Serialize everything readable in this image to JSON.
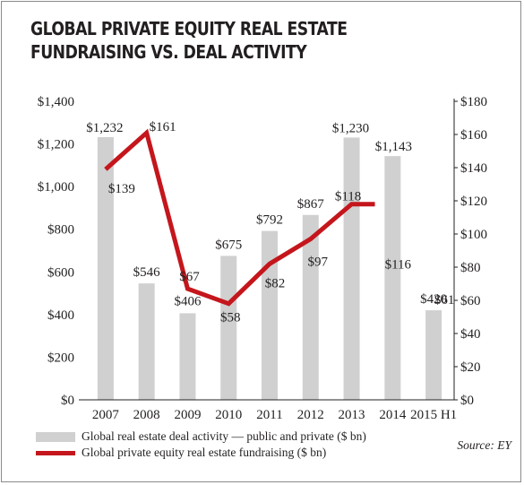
{
  "header": {
    "title_line1": "GLOBAL PRIVATE EQUITY REAL ESTATE",
    "title_line2": "FUNDRAISING VS. DEAL ACTIVITY"
  },
  "legend": {
    "bars_label": "Global real estate deal activity — public and private ($ bn)",
    "line_label": "Global private equity real estate fundraising ($ bn)"
  },
  "source": "Source: EY",
  "colors": {
    "bar": "#d0d0d0",
    "line": "#c4161c",
    "text": "#231f20"
  },
  "chart_data": {
    "type": "bar",
    "title": "GLOBAL PRIVATE EQUITY REAL ESTATE FUNDRAISING VS. DEAL ACTIVITY",
    "categories": [
      "2007",
      "2008",
      "2009",
      "2010",
      "2011",
      "2012",
      "2013",
      "2014",
      "2015 H1"
    ],
    "series": [
      {
        "name": "Global real estate deal activity — public and private ($ bn)",
        "type": "bar",
        "axis": "left",
        "values": [
          1232,
          546,
          406,
          675,
          792,
          867,
          1230,
          1143,
          420
        ],
        "labels": [
          "$1,232",
          "$546",
          "$406",
          "$675",
          "$792",
          "$867",
          "$1,230",
          "$1,143",
          "$420"
        ]
      },
      {
        "name": "Global private equity real estate fundraising ($ bn)",
        "type": "line",
        "axis": "right",
        "values": [
          139,
          161,
          67,
          58,
          82,
          97,
          118,
          116,
          61
        ],
        "labels": [
          "$139",
          "$161",
          "$67",
          "$58",
          "$82",
          "$97",
          "$118",
          "$116",
          "$61"
        ],
        "plotted": [
          true,
          true,
          true,
          true,
          true,
          true,
          true,
          false,
          false
        ]
      }
    ],
    "y_left": {
      "ylim": [
        0,
        1400
      ],
      "ticks": [
        0,
        200,
        400,
        600,
        800,
        1000,
        1200,
        1400
      ],
      "tick_labels": [
        "$0",
        "$200",
        "$400",
        "$600",
        "$800",
        "$1,000",
        "$1,200",
        "$1,400"
      ]
    },
    "y_right": {
      "ylim": [
        0,
        180
      ],
      "ticks": [
        0,
        20,
        40,
        60,
        80,
        100,
        120,
        140,
        160,
        180
      ],
      "tick_labels": [
        "$0",
        "$20",
        "$40",
        "$60",
        "$80",
        "$100",
        "$120",
        "$140",
        "$160",
        "$180"
      ]
    },
    "grid": false,
    "legend_position": "bottom-left"
  }
}
